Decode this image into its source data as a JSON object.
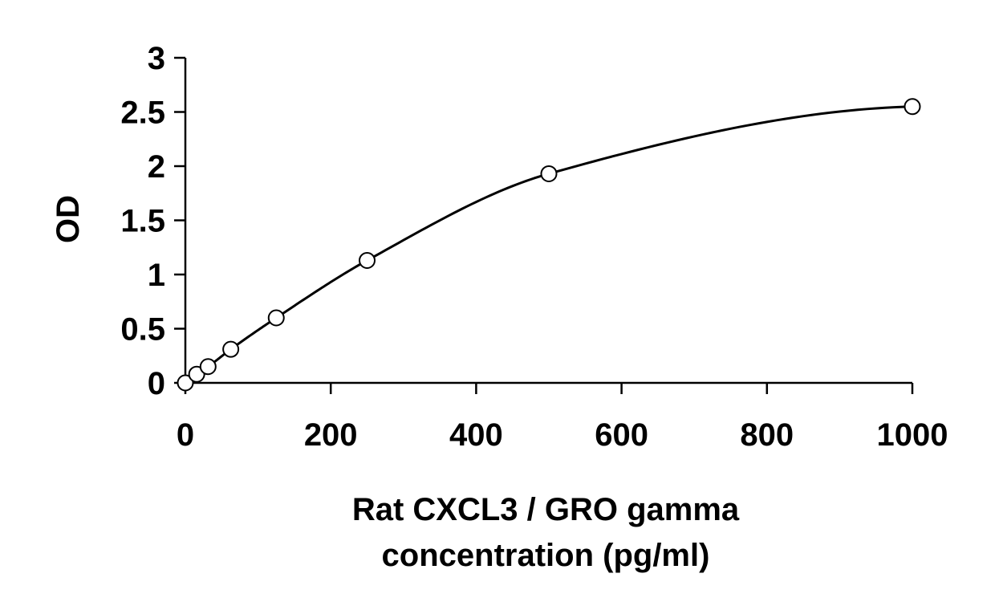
{
  "chart_data": {
    "type": "scatter",
    "title": "",
    "ylabel": "OD",
    "xlabel_lines": [
      "Rat CXCL3 / GRO gamma",
      "concentration (pg/ml)"
    ],
    "xlim": [
      0,
      1000
    ],
    "ylim": [
      0,
      3
    ],
    "xticks": [
      0,
      200,
      400,
      600,
      800,
      1000
    ],
    "yticks": [
      0,
      0.5,
      1,
      1.5,
      2,
      2.5,
      3
    ],
    "xtick_labels": [
      "0",
      "200",
      "400",
      "600",
      "800",
      "1000"
    ],
    "ytick_labels": [
      "0",
      "0.5",
      "1",
      "1.5",
      "2",
      "2.5",
      "3"
    ],
    "grid": false,
    "legend": "none",
    "marker": "open-circle",
    "fit": "smooth curve through standards",
    "series": [
      {
        "x": [
          0,
          15.6,
          31.25,
          62.5,
          125,
          250,
          500,
          1000
        ],
        "y": [
          0.0,
          0.08,
          0.15,
          0.31,
          0.6,
          1.13,
          1.93,
          2.55
        ]
      }
    ],
    "colors": {
      "line": "#000000",
      "marker_fill": "#ffffff",
      "marker_stroke": "#000000"
    }
  }
}
